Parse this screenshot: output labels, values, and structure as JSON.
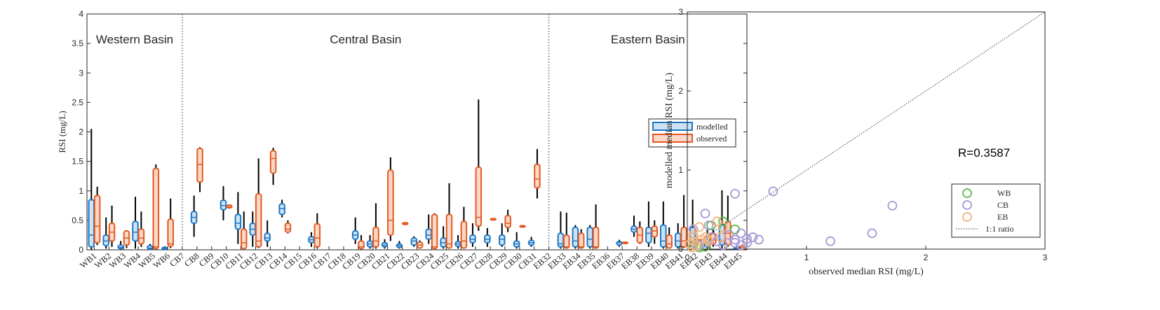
{
  "chart_data": [
    {
      "type": "box",
      "ylabel": "RSI (mg/L)",
      "ylim": [
        0,
        4
      ],
      "yticks": [
        0,
        0.5,
        1,
        1.5,
        2,
        2.5,
        3,
        3.5,
        4
      ],
      "region_labels": [
        "Western Basin",
        "Central Basin",
        "Eastern Basin"
      ],
      "legend": {
        "position": "right",
        "entries": [
          "modelled",
          "observed"
        ]
      },
      "series_colors": {
        "modelled": "#1f77c4",
        "modelled_fill": "#cde3f3",
        "observed": "#e35a22",
        "observed_fill": "#fbd7c8"
      },
      "stations": [
        {
          "name": "WB1",
          "basin": "W",
          "m": {
            "min": 0,
            "q1": 0.05,
            "med": 0.25,
            "q3": 0.85,
            "max": 2.05
          },
          "o": {
            "min": 0.08,
            "q1": 0.12,
            "med": 0.4,
            "q3": 0.92,
            "max": 1.07
          }
        },
        {
          "name": "WB2",
          "basin": "W",
          "m": {
            "min": 0.02,
            "q1": 0.07,
            "med": 0.15,
            "q3": 0.25,
            "max": 0.55
          },
          "o": {
            "min": 0.05,
            "q1": 0.15,
            "med": 0.3,
            "q3": 0.45,
            "max": 0.75
          }
        },
        {
          "name": "WB3",
          "basin": "W",
          "m": {
            "min": 0,
            "q1": 0.02,
            "med": 0.04,
            "q3": 0.08,
            "max": 0.15
          },
          "o": {
            "min": 0.03,
            "q1": 0.08,
            "med": 0.2,
            "q3": 0.32,
            "max": 0.33
          }
        },
        {
          "name": "WB4",
          "basin": "W",
          "m": {
            "min": 0.02,
            "q1": 0.15,
            "med": 0.3,
            "q3": 0.48,
            "max": 0.9
          },
          "o": {
            "min": 0.05,
            "q1": 0.1,
            "med": 0.2,
            "q3": 0.35,
            "max": 0.65
          }
        },
        {
          "name": "WB5",
          "basin": "W",
          "m": {
            "min": 0,
            "q1": 0.01,
            "med": 0.03,
            "q3": 0.07,
            "max": 0.1
          },
          "o": {
            "min": 0,
            "q1": 0.02,
            "med": 0.05,
            "q3": 1.38,
            "max": 1.45
          }
        },
        {
          "name": "WB6",
          "basin": "W",
          "m": {
            "min": 0,
            "q1": 0.01,
            "med": 0.02,
            "q3": 0.04,
            "max": 0.06
          },
          "o": {
            "min": 0.03,
            "q1": 0.06,
            "med": 0.1,
            "q3": 0.52,
            "max": 0.87
          }
        },
        {
          "name": "CB7",
          "basin": "C",
          "m": null,
          "o": null
        },
        {
          "name": "CB8",
          "basin": "C",
          "m": {
            "min": 0.22,
            "q1": 0.45,
            "med": 0.55,
            "q3": 0.65,
            "max": 0.92
          },
          "o": {
            "min": 0.98,
            "q1": 1.15,
            "med": 1.45,
            "q3": 1.72,
            "max": 1.74
          }
        },
        {
          "name": "CB9",
          "basin": "C",
          "m": null,
          "o": null
        },
        {
          "name": "CB10",
          "basin": "C",
          "m": {
            "min": 0.5,
            "q1": 0.68,
            "med": 0.75,
            "q3": 0.84,
            "max": 1.08
          },
          "o": {
            "min": 0.7,
            "q1": 0.71,
            "med": 0.73,
            "q3": 0.76,
            "max": 0.77
          }
        },
        {
          "name": "CB11",
          "basin": "C",
          "m": {
            "min": 0.1,
            "q1": 0.35,
            "med": 0.45,
            "q3": 0.6,
            "max": 0.98
          },
          "o": {
            "min": 0.02,
            "q1": 0.02,
            "med": 0.12,
            "q3": 0.35,
            "max": 0.65
          }
        },
        {
          "name": "CB12",
          "basin": "C",
          "m": {
            "min": 0.05,
            "q1": 0.25,
            "med": 0.35,
            "q3": 0.45,
            "max": 0.65
          },
          "o": {
            "min": 0.03,
            "q1": 0.05,
            "med": 0.15,
            "q3": 0.95,
            "max": 1.55
          }
        },
        {
          "name": "CB13",
          "basin": "C",
          "m": {
            "min": 0.05,
            "q1": 0.15,
            "med": 0.2,
            "q3": 0.28,
            "max": 0.5
          },
          "o": {
            "min": 1.1,
            "q1": 1.3,
            "med": 1.55,
            "q3": 1.68,
            "max": 1.73
          }
        },
        {
          "name": "CB14",
          "basin": "C",
          "m": {
            "min": 0.55,
            "q1": 0.6,
            "med": 0.7,
            "q3": 0.78,
            "max": 0.85
          },
          "o": {
            "min": 0.28,
            "q1": 0.3,
            "med": 0.35,
            "q3": 0.45,
            "max": 0.5
          }
        },
        {
          "name": "CB15",
          "basin": "C",
          "m": null,
          "o": null
        },
        {
          "name": "CB16",
          "basin": "C",
          "m": {
            "min": 0.05,
            "q1": 0.12,
            "med": 0.17,
            "q3": 0.22,
            "max": 0.3
          },
          "o": {
            "min": 0.02,
            "q1": 0.05,
            "med": 0.2,
            "q3": 0.44,
            "max": 0.62
          }
        },
        {
          "name": "CB17",
          "basin": "C",
          "m": null,
          "o": null
        },
        {
          "name": "CB18",
          "basin": "C",
          "m": null,
          "o": null
        },
        {
          "name": "CB19",
          "basin": "C",
          "m": {
            "min": 0.1,
            "q1": 0.18,
            "med": 0.25,
            "q3": 0.32,
            "max": 0.55
          },
          "o": {
            "min": 0,
            "q1": 0.02,
            "med": 0.05,
            "q3": 0.15,
            "max": 0.25
          }
        },
        {
          "name": "CB20",
          "basin": "C",
          "m": {
            "min": 0.02,
            "q1": 0.05,
            "med": 0.1,
            "q3": 0.15,
            "max": 0.25
          },
          "o": {
            "min": 0.02,
            "q1": 0.05,
            "med": 0.15,
            "q3": 0.38,
            "max": 0.79
          }
        },
        {
          "name": "CB21",
          "basin": "C",
          "m": {
            "min": 0.02,
            "q1": 0.05,
            "med": 0.08,
            "q3": 0.12,
            "max": 0.18
          },
          "o": {
            "min": 0.15,
            "q1": 0.25,
            "med": 0.5,
            "q3": 1.35,
            "max": 1.57
          }
        },
        {
          "name": "CB22",
          "basin": "C",
          "m": {
            "min": 0.02,
            "q1": 0.04,
            "med": 0.07,
            "q3": 0.1,
            "max": 0.15
          },
          "o": {
            "min": 0.43,
            "q1": 0.43,
            "med": 0.45,
            "q3": 0.46,
            "max": 0.46
          }
        },
        {
          "name": "CB23",
          "basin": "C",
          "m": {
            "min": 0.05,
            "q1": 0.08,
            "med": 0.15,
            "q3": 0.2,
            "max": 0.23
          },
          "o": {
            "min": 0.03,
            "q1": 0.03,
            "med": 0.08,
            "q3": 0.13,
            "max": 0.16
          }
        },
        {
          "name": "CB24",
          "basin": "C",
          "m": {
            "min": 0.1,
            "q1": 0.18,
            "med": 0.25,
            "q3": 0.35,
            "max": 0.6
          },
          "o": {
            "min": 0.02,
            "q1": 0.02,
            "med": 0.05,
            "q3": 0.6,
            "max": 0.62
          }
        },
        {
          "name": "CB25",
          "basin": "C",
          "m": {
            "min": 0.02,
            "q1": 0.05,
            "med": 0.12,
            "q3": 0.2,
            "max": 0.4
          },
          "o": {
            "min": 0.03,
            "q1": 0.03,
            "med": 0.1,
            "q3": 0.6,
            "max": 1.13
          }
        },
        {
          "name": "CB26",
          "basin": "C",
          "m": {
            "min": 0.02,
            "q1": 0.06,
            "med": 0.1,
            "q3": 0.14,
            "max": 0.25
          },
          "o": {
            "min": 0.02,
            "q1": 0.03,
            "med": 0.15,
            "q3": 0.48,
            "max": 0.73
          }
        },
        {
          "name": "CB27",
          "basin": "C",
          "m": {
            "min": 0.05,
            "q1": 0.12,
            "med": 0.18,
            "q3": 0.25,
            "max": 0.45
          },
          "o": {
            "min": 0.32,
            "q1": 0.4,
            "med": 0.55,
            "q3": 1.4,
            "max": 2.55
          }
        },
        {
          "name": "CB28",
          "basin": "C",
          "m": {
            "min": 0.05,
            "q1": 0.12,
            "med": 0.18,
            "q3": 0.25,
            "max": 0.37
          },
          "o": {
            "min": 0.5,
            "q1": 0.51,
            "med": 0.52,
            "q3": 0.53,
            "max": 0.54
          }
        },
        {
          "name": "CB29",
          "basin": "C",
          "m": {
            "min": 0.05,
            "q1": 0.08,
            "med": 0.18,
            "q3": 0.25,
            "max": 0.45
          },
          "o": {
            "min": 0.3,
            "q1": 0.38,
            "med": 0.45,
            "q3": 0.58,
            "max": 0.68
          }
        },
        {
          "name": "CB30",
          "basin": "C",
          "m": {
            "min": 0.02,
            "q1": 0.05,
            "med": 0.1,
            "q3": 0.15,
            "max": 0.3
          },
          "o": {
            "min": 0.38,
            "q1": 0.39,
            "med": 0.4,
            "q3": 0.41,
            "max": 0.42
          }
        },
        {
          "name": "CB31",
          "basin": "C",
          "m": {
            "min": 0.05,
            "q1": 0.08,
            "med": 0.12,
            "q3": 0.16,
            "max": 0.22
          },
          "o": {
            "min": 0.87,
            "q1": 1.05,
            "med": 1.2,
            "q3": 1.45,
            "max": 1.71
          }
        },
        {
          "name": "EB32",
          "basin": "E",
          "m": null,
          "o": null
        },
        {
          "name": "EB33",
          "basin": "E",
          "m": {
            "min": 0.02,
            "q1": 0.05,
            "med": 0.1,
            "q3": 0.28,
            "max": 0.65
          },
          "o": {
            "min": 0.02,
            "q1": 0.03,
            "med": 0.05,
            "q3": 0.25,
            "max": 0.63
          }
        },
        {
          "name": "EB34",
          "basin": "E",
          "m": {
            "min": 0.02,
            "q1": 0.05,
            "med": 0.15,
            "q3": 0.38,
            "max": 0.42
          },
          "o": {
            "min": 0.02,
            "q1": 0.03,
            "med": 0.05,
            "q3": 0.28,
            "max": 0.35
          }
        },
        {
          "name": "EB35",
          "basin": "E",
          "m": {
            "min": 0.02,
            "q1": 0.05,
            "med": 0.18,
            "q3": 0.38,
            "max": 0.42
          },
          "o": {
            "min": 0.02,
            "q1": 0.03,
            "med": 0.05,
            "q3": 0.38,
            "max": 0.77
          }
        },
        {
          "name": "EB36",
          "basin": "E",
          "m": null,
          "o": null
        },
        {
          "name": "EB37",
          "basin": "E",
          "m": {
            "min": 0.05,
            "q1": 0.08,
            "med": 0.12,
            "q3": 0.14,
            "max": 0.17
          },
          "o": {
            "min": 0.11,
            "q1": 0.11,
            "med": 0.12,
            "q3": 0.13,
            "max": 0.13
          }
        },
        {
          "name": "EB38",
          "basin": "E",
          "m": {
            "min": 0.22,
            "q1": 0.3,
            "med": 0.35,
            "q3": 0.4,
            "max": 0.58
          },
          "o": {
            "min": 0.1,
            "q1": 0.12,
            "med": 0.25,
            "q3": 0.38,
            "max": 0.48
          }
        },
        {
          "name": "EB39",
          "basin": "E",
          "m": {
            "min": 0.05,
            "q1": 0.12,
            "med": 0.28,
            "q3": 0.38,
            "max": 0.82
          },
          "o": {
            "min": 0.1,
            "q1": 0.22,
            "med": 0.32,
            "q3": 0.4,
            "max": 0.5
          }
        },
        {
          "name": "EB40",
          "basin": "E",
          "m": {
            "min": 0.02,
            "q1": 0.05,
            "med": 0.15,
            "q3": 0.42,
            "max": 0.82
          },
          "o": {
            "min": 0.02,
            "q1": 0.03,
            "med": 0.1,
            "q3": 0.25,
            "max": 0.38
          }
        },
        {
          "name": "EB41",
          "basin": "E",
          "m": {
            "min": 0.02,
            "q1": 0.05,
            "med": 0.15,
            "q3": 0.28,
            "max": 0.45
          },
          "o": {
            "min": 0.03,
            "q1": 0.05,
            "med": 0.15,
            "q3": 0.38,
            "max": 0.93
          }
        },
        {
          "name": "EB42",
          "basin": "E",
          "m": {
            "min": 0.02,
            "q1": 0.05,
            "med": 0.12,
            "q3": 0.38,
            "max": 0.85
          },
          "o": {
            "min": 0.16,
            "q1": 0.16,
            "med": 0.17,
            "q3": 0.17,
            "max": 0.18
          }
        },
        {
          "name": "EB43",
          "basin": "E",
          "m": {
            "min": 0.02,
            "q1": 0.05,
            "med": 0.1,
            "q3": 0.22,
            "max": 0.35
          },
          "o": {
            "min": 0.05,
            "q1": 0.1,
            "med": 0.18,
            "q3": 0.28,
            "max": 0.35
          }
        },
        {
          "name": "EB44",
          "basin": "E",
          "m": {
            "min": 0.02,
            "q1": 0.08,
            "med": 0.15,
            "q3": 0.43,
            "max": 1.01
          },
          "o": {
            "min": 0.05,
            "q1": 0.08,
            "med": 0.28,
            "q3": 0.48,
            "max": 0.92
          }
        },
        {
          "name": "EB45",
          "basin": "E",
          "m": {
            "min": 0,
            "q1": 0.01,
            "med": 0.02,
            "q3": 0.04,
            "max": 0.08
          },
          "o": {
            "min": 0,
            "q1": 0.01,
            "med": 0.04,
            "q3": 0.07,
            "max": 0.08
          }
        }
      ]
    },
    {
      "type": "scatter",
      "xlabel": "observed median RSI (mg/L)",
      "ylabel": "modelled median RSI (mg/L)",
      "xlim": [
        0,
        3
      ],
      "ylim": [
        0,
        3
      ],
      "xticks": [
        0,
        1,
        2,
        3
      ],
      "yticks": [
        0,
        1,
        2,
        3
      ],
      "annotation": "R=0.3587",
      "legend_position": "bottom-right",
      "series": [
        {
          "name": "WB",
          "color": "#5ab84a",
          "points": [
            [
              0.4,
              0.25
            ],
            [
              0.3,
              0.35
            ],
            [
              0.2,
              0.3
            ],
            [
              0.05,
              0.05
            ],
            [
              0.1,
              0.02
            ],
            [
              0.15,
              0.03
            ]
          ]
        },
        {
          "name": "CB",
          "color": "#a899d6",
          "points": [
            [
              0.72,
              0.73
            ],
            [
              0.4,
              0.7
            ],
            [
              1.72,
              0.55
            ],
            [
              0.15,
              0.45
            ],
            [
              0.18,
              0.3
            ],
            [
              0.35,
              0.18
            ],
            [
              0.45,
              0.2
            ],
            [
              0.5,
              0.13
            ],
            [
              0.55,
              0.15
            ],
            [
              0.6,
              0.12
            ],
            [
              1.55,
              0.2
            ],
            [
              1.2,
              0.1
            ],
            [
              0.4,
              0.12
            ],
            [
              0.5,
              0.08
            ],
            [
              0.45,
              0.05
            ],
            [
              0.4,
              0.08
            ],
            [
              0.3,
              0.05
            ],
            [
              0.25,
              0.1
            ],
            [
              0.2,
              0.15
            ],
            [
              0.15,
              0.08
            ],
            [
              0.05,
              0.25
            ],
            [
              0.1,
              0.05
            ]
          ]
        },
        {
          "name": "EB",
          "color": "#f2b27a",
          "points": [
            [
              0.05,
              0.1
            ],
            [
              0.05,
              0.15
            ],
            [
              0.05,
              0.18
            ],
            [
              0.1,
              0.28
            ],
            [
              0.12,
              0.12
            ],
            [
              0.25,
              0.35
            ],
            [
              0.3,
              0.28
            ],
            [
              0.15,
              0.15
            ],
            [
              0.17,
              0.12
            ],
            [
              0.18,
              0.1
            ],
            [
              0.28,
              0.15
            ],
            [
              0.04,
              0.02
            ],
            [
              0.02,
              0.06
            ],
            [
              0.07,
              0.04
            ]
          ]
        }
      ],
      "ref_line": {
        "label": "1:1 ratio"
      }
    }
  ]
}
